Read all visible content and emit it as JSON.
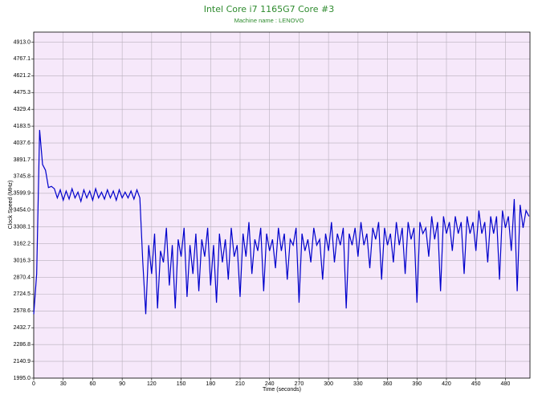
{
  "chart_data": {
    "type": "line",
    "title": "Intel Core i7 1165G7 Core #3",
    "subtitle": "Machine name : LENOVO",
    "x_label": "Time (seconds)",
    "y_label": "Clock Speed (MHz)",
    "xlim": [
      0,
      505
    ],
    "ylim": [
      1995.0,
      5000
    ],
    "xticks": [
      0,
      30,
      60,
      90,
      120,
      150,
      180,
      210,
      240,
      270,
      300,
      330,
      360,
      390,
      420,
      450,
      480
    ],
    "yticks": [
      {
        "value": 1995,
        "label": "1995.0"
      },
      2140.9,
      2286.8,
      2432.7,
      2578.6,
      2724.5,
      2870.4,
      3016.3,
      3162.2,
      3308.1,
      {
        "value": 3454,
        "label": "3454.0"
      },
      3599.9,
      3745.8,
      3891.7,
      4037.6,
      4183.5,
      4329.4,
      4475.3,
      4621.2,
      4767.1,
      {
        "value": 4913,
        "label": "4913.0"
      }
    ],
    "grid": true,
    "background": "#f6e8fa",
    "x": [
      0,
      3,
      6,
      9,
      12,
      15,
      18,
      21,
      24,
      27,
      30,
      33,
      36,
      39,
      42,
      45,
      48,
      51,
      54,
      57,
      60,
      63,
      66,
      69,
      72,
      75,
      78,
      81,
      84,
      87,
      90,
      93,
      96,
      99,
      102,
      105,
      108,
      111,
      114,
      117,
      120,
      123,
      126,
      129,
      132,
      135,
      138,
      141,
      144,
      147,
      150,
      153,
      156,
      159,
      162,
      165,
      168,
      171,
      174,
      177,
      180,
      183,
      186,
      189,
      192,
      195,
      198,
      201,
      204,
      207,
      210,
      213,
      216,
      219,
      222,
      225,
      228,
      231,
      234,
      237,
      240,
      243,
      246,
      249,
      252,
      255,
      258,
      261,
      264,
      267,
      270,
      273,
      276,
      279,
      282,
      285,
      288,
      291,
      294,
      297,
      300,
      303,
      306,
      309,
      312,
      315,
      318,
      321,
      324,
      327,
      330,
      333,
      336,
      339,
      342,
      345,
      348,
      351,
      354,
      357,
      360,
      363,
      366,
      369,
      372,
      375,
      378,
      381,
      384,
      387,
      390,
      393,
      396,
      399,
      402,
      405,
      408,
      411,
      414,
      417,
      420,
      423,
      426,
      429,
      432,
      435,
      438,
      441,
      444,
      447,
      450,
      453,
      456,
      459,
      462,
      465,
      468,
      471,
      474,
      477,
      480,
      483,
      486,
      489,
      492,
      495,
      498,
      501,
      504
    ],
    "series": [
      {
        "color": "#0000cc",
        "values": [
          2550,
          2900,
          4150,
          3850,
          3800,
          3650,
          3660,
          3640,
          3560,
          3630,
          3540,
          3620,
          3550,
          3640,
          3560,
          3610,
          3530,
          3630,
          3560,
          3620,
          3540,
          3640,
          3560,
          3610,
          3550,
          3630,
          3560,
          3620,
          3540,
          3630,
          3560,
          3610,
          3560,
          3620,
          3550,
          3630,
          3560,
          3000,
          2550,
          3150,
          2900,
          3250,
          2600,
          3100,
          3000,
          3300,
          2800,
          3150,
          2600,
          3200,
          3050,
          3300,
          2700,
          3150,
          2900,
          3250,
          2750,
          3200,
          3050,
          3300,
          2800,
          3150,
          2650,
          3250,
          3000,
          3200,
          2850,
          3300,
          3050,
          3150,
          2700,
          3250,
          3050,
          3350,
          2900,
          3200,
          3100,
          3300,
          2750,
          3250,
          3100,
          3200,
          2950,
          3300,
          3100,
          3250,
          2850,
          3200,
          3150,
          3300,
          2650,
          3250,
          3100,
          3200,
          3000,
          3300,
          3150,
          3200,
          2850,
          3250,
          3100,
          3350,
          3000,
          3250,
          3150,
          3300,
          2600,
          3250,
          3150,
          3300,
          3050,
          3350,
          3150,
          3250,
          2950,
          3300,
          3200,
          3350,
          2850,
          3300,
          3150,
          3250,
          3000,
          3350,
          3150,
          3300,
          2900,
          3350,
          3200,
          3300,
          2650,
          3350,
          3250,
          3300,
          3050,
          3400,
          3200,
          3350,
          2750,
          3400,
          3250,
          3350,
          3100,
          3400,
          3250,
          3350,
          2900,
          3400,
          3250,
          3350,
          3100,
          3450,
          3250,
          3350,
          3000,
          3400,
          3250,
          3400,
          2850,
          3450,
          3300,
          3400,
          3100,
          3550,
          2750,
          3500,
          3300,
          3450,
          3400
        ]
      }
    ]
  }
}
